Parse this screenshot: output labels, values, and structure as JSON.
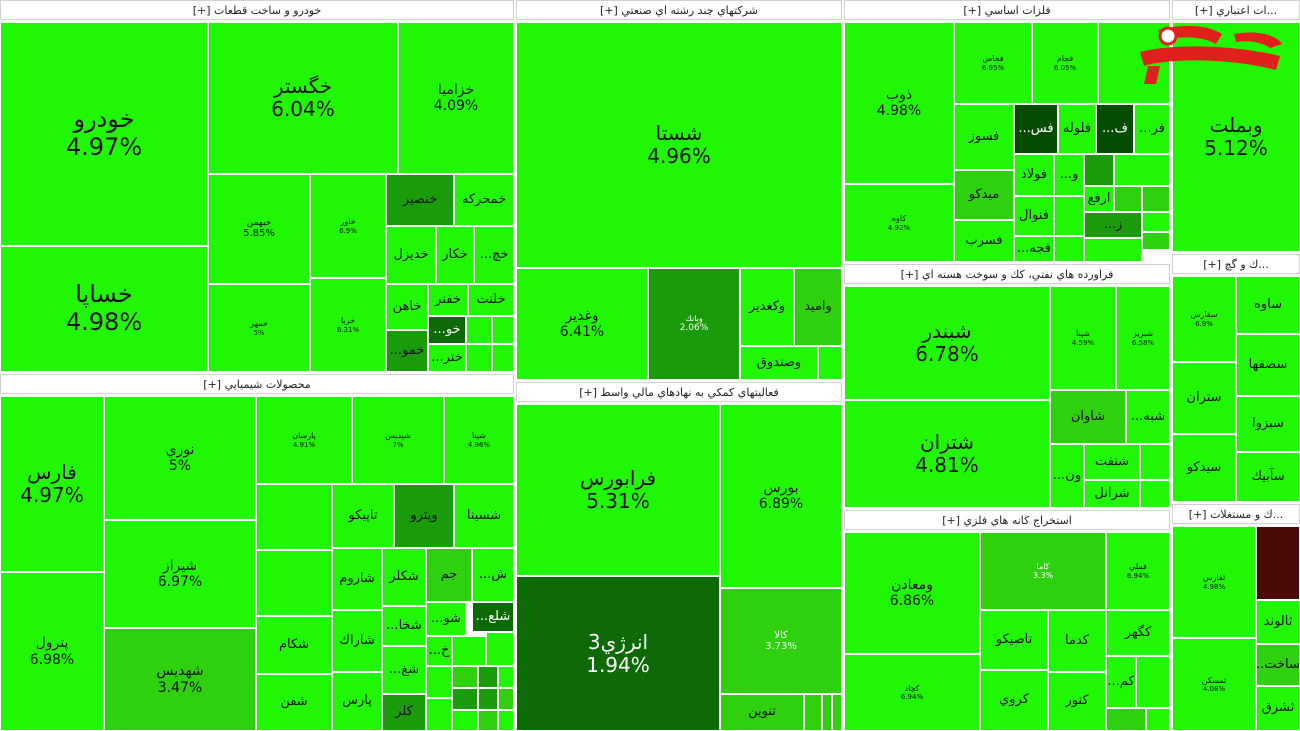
{
  "sectors": {
    "auto": "خودرو و ساخت قطعات [+]",
    "multi": "شركتهاي چند رشته اي صنعتي [+]",
    "metals": "فلزات اساسي [+]",
    "credit": "...ات اعتباري [+]",
    "chem": "محصولات شيميايي [+]",
    "finance": "فعاليتهاي كمكي به نهادهاي مالي واسط [+]",
    "oil": "فراورده هاي نفتي، كك و سوخت هسته اي [+]",
    "cement": "...ك و گچ [+]",
    "mining": "استخراج كانه هاي فلزي [+]",
    "realestate": "...ك و مستغلات [+]"
  },
  "tiles": {
    "khodro": {
      "n": "خودرو",
      "p": "4.97%"
    },
    "khsapa": {
      "n": "خساپا",
      "p": "4.98%"
    },
    "khgostar": {
      "n": "خگستر",
      "p": "6.04%"
    },
    "khzamia": {
      "n": "خزاميا",
      "p": "4.09%"
    },
    "khbahman": {
      "n": "خبهمن",
      "p": "5.85%"
    },
    "khmehr": {
      "n": "خمهر",
      "p": "5%"
    },
    "khavar": {
      "n": "خاور",
      "p": "6.9%"
    },
    "khria": {
      "n": "خريا",
      "p": "6.31%"
    },
    "khansir": {
      "n": "خنصير"
    },
    "khcharkh": {
      "n": "خمحركه"
    },
    "khdiz": {
      "n": "خديزل"
    },
    "khkar": {
      "n": "خكار"
    },
    "khch": {
      "n": "...خچ"
    },
    "khahan": {
      "n": "خاهن"
    },
    "khfanar": {
      "n": "خفنر"
    },
    "khlent": {
      "n": "خلنت"
    },
    "khmoh": {
      "n": "...خمو"
    },
    "khtara": {
      "n": "...ختر"
    },
    "khoo": {
      "n": "...خو"
    },
    "shasta": {
      "n": "شستا",
      "p": "4.96%"
    },
    "vghadir": {
      "n": "وغدير",
      "p": "6.41%"
    },
    "vbank": {
      "n": "وبانك",
      "p": "2.06%"
    },
    "vkghadir": {
      "n": "وكغدير"
    },
    "vamid": {
      "n": "واميد"
    },
    "vsandoq": {
      "n": "وصندوق"
    },
    "zob": {
      "n": "ذوب",
      "p": "4.98%"
    },
    "kaveh": {
      "n": "كاوه",
      "p": "4.92%"
    },
    "mtop1": {
      "n": "فخاس",
      "p": "6.95%"
    },
    "mtop2": {
      "n": "فجام",
      "p": "6.05%"
    },
    "fsoz": {
      "n": "فسوز"
    },
    "fsa": {
      "n": "...فس"
    },
    "flole": {
      "n": "فلوله"
    },
    "fa": {
      "n": "...ف"
    },
    "faf": {
      "n": "...فر"
    },
    "mideko": {
      "n": "ميدكو"
    },
    "foolad": {
      "n": "فولاد"
    },
    "fnavar": {
      "n": "فنوال"
    },
    "fsarab": {
      "n": "فسرب"
    },
    "frtja": {
      "n": "...فجه"
    },
    "arfa": {
      "n": "ارفع"
    },
    "zz": {
      "n": "...ز"
    },
    "vo": {
      "n": "...و"
    },
    "vbmellat": {
      "n": "وبملت",
      "p": "5.12%"
    },
    "fars": {
      "n": "فارس",
      "p": "4.97%"
    },
    "petrol": {
      "n": "پترول",
      "p": "6.98%"
    },
    "noori": {
      "n": "نوري",
      "p": "5%"
    },
    "shiraz": {
      "n": "شيراز",
      "p": "6.97%"
    },
    "shahdis": {
      "n": "شهديس",
      "p": "3.47%"
    },
    "chem1": {
      "n": "پارسان",
      "p": "4.91%"
    },
    "chem2": {
      "n": "شپديس",
      "p": "7%"
    },
    "chem3": {
      "n": "شپنا",
      "p": "4.96%"
    },
    "tapiko": {
      "n": "تاپيكو"
    },
    "vpetro": {
      "n": "وپترو"
    },
    "shsina": {
      "n": "شسينا"
    },
    "shaaroom": {
      "n": "شاروم"
    },
    "shkolor": {
      "n": "شكلر"
    },
    "jam": {
      "n": "جم"
    },
    "shsh": {
      "n": "...ش"
    },
    "shkam": {
      "n": "شكام"
    },
    "shazak": {
      "n": "شاراك"
    },
    "shkha": {
      "n": "...شخا"
    },
    "shoo": {
      "n": "...شو"
    },
    "shlaa": {
      "n": "...شلع"
    },
    "shfan": {
      "n": "شفن"
    },
    "paars": {
      "n": "پارس"
    },
    "shaa": {
      "n": "...شغ"
    },
    "kalar": {
      "n": "كلر"
    },
    "kh2": {
      "n": "...خ"
    },
    "faraboors": {
      "n": "فرابورس",
      "p": "5.31%"
    },
    "boors": {
      "n": "بورس",
      "p": "6.89%"
    },
    "energy3": {
      "n": "انرژي3",
      "p": "1.94%"
    },
    "kala": {
      "n": "كالا",
      "p": "3.73%"
    },
    "tonin": {
      "n": "تنوين"
    },
    "shbandar": {
      "n": "شبندر",
      "p": "6.78%"
    },
    "shtran": {
      "n": "شتران",
      "p": "4.81%"
    },
    "shavan": {
      "n": "شاوان"
    },
    "shbiye": {
      "n": "...شبه"
    },
    "shnaft": {
      "n": "شنفت"
    },
    "shraanel": {
      "n": "شرانل"
    },
    "on": {
      "n": "...ون"
    },
    "oil1": {
      "n": "شپنا",
      "p": "4.59%"
    },
    "oil2": {
      "n": "شبريز",
      "p": "6.58%"
    },
    "vmaaden": {
      "n": "ومعادن",
      "p": "6.86%"
    },
    "kama": {
      "n": "كاما",
      "p": "3.3%"
    },
    "kchad": {
      "n": "كچاد",
      "p": "6.94%"
    },
    "tasiko": {
      "n": "تاصيكو"
    },
    "kdama": {
      "n": "كدما"
    },
    "kgohar": {
      "n": "كگهر"
    },
    "kroi": {
      "n": "كروي"
    },
    "knoor": {
      "n": "كنور"
    },
    "kam": {
      "n": "...كم"
    },
    "min1": {
      "n": "فملي",
      "p": "6.94%"
    },
    "saveh": {
      "n": "ساوه"
    },
    "sesfaha": {
      "n": "سصفها"
    },
    "sitran": {
      "n": "ستران"
    },
    "sbzva": {
      "n": "سبزوا"
    },
    "sidko": {
      "n": "سيدكو"
    },
    "sabik": {
      "n": "سآبيك"
    },
    "cem1": {
      "n": "سفارس",
      "p": "6.9%"
    },
    "tfars": {
      "n": "ثفارس",
      "p": "4.98%"
    },
    "tlund": {
      "n": "ثالوند"
    },
    "tsakht": {
      "n": "...ثساخت"
    },
    "tshargh": {
      "n": "ثشرق"
    },
    "tmaskan": {
      "n": "ثمسكن",
      "p": "4.08%"
    }
  }
}
